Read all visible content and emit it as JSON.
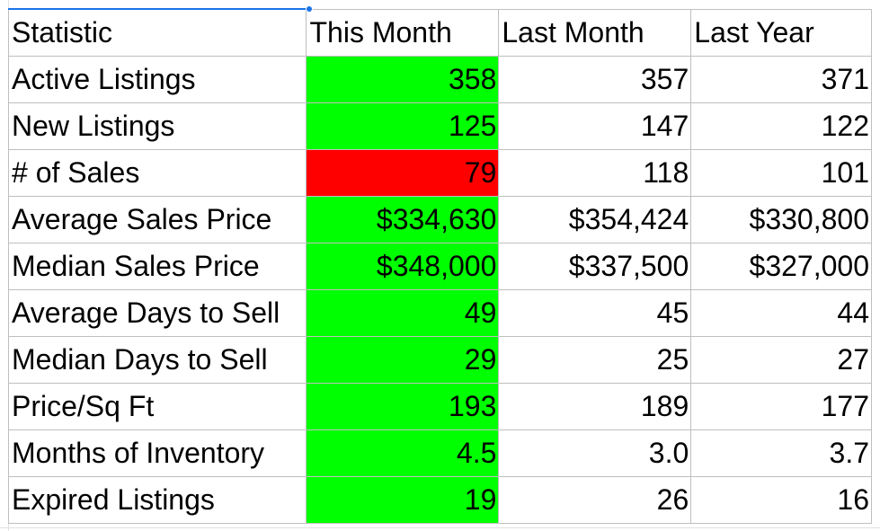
{
  "table": {
    "headers": [
      "Statistic",
      "This Month",
      "Last Month",
      "Last Year"
    ],
    "rows": [
      {
        "statistic": "Active Listings",
        "this_month": "358",
        "last_month": "357",
        "last_year": "371",
        "this_month_status": "green"
      },
      {
        "statistic": "New Listings",
        "this_month": "125",
        "last_month": "147",
        "last_year": "122",
        "this_month_status": "green"
      },
      {
        "statistic": "# of Sales",
        "this_month": "79",
        "last_month": "118",
        "last_year": "101",
        "this_month_status": "red"
      },
      {
        "statistic": "Average Sales Price",
        "this_month": "$334,630",
        "last_month": "$354,424",
        "last_year": "$330,800",
        "this_month_status": "green"
      },
      {
        "statistic": "Median Sales Price",
        "this_month": "$348,000",
        "last_month": "$337,500",
        "last_year": "$327,000",
        "this_month_status": "green"
      },
      {
        "statistic": "Average Days to Sell",
        "this_month": "49",
        "last_month": "45",
        "last_year": "44",
        "this_month_status": "green"
      },
      {
        "statistic": "Median Days to Sell",
        "this_month": "29",
        "last_month": "25",
        "last_year": "27",
        "this_month_status": "green"
      },
      {
        "statistic": "Price/Sq Ft",
        "this_month": "193",
        "last_month": "189",
        "last_year": "177",
        "this_month_status": "green"
      },
      {
        "statistic": "Months of Inventory",
        "this_month": "4.5",
        "last_month": "3.0",
        "last_year": "3.7",
        "this_month_status": "green"
      },
      {
        "statistic": "Expired Listings",
        "this_month": "19",
        "last_month": "26",
        "last_year": "16",
        "this_month_status": "green"
      }
    ]
  },
  "colors": {
    "green": "#00ff00",
    "red": "#ff0000",
    "selection": "#1a73e8",
    "cell_border": "#bfbfbf"
  }
}
